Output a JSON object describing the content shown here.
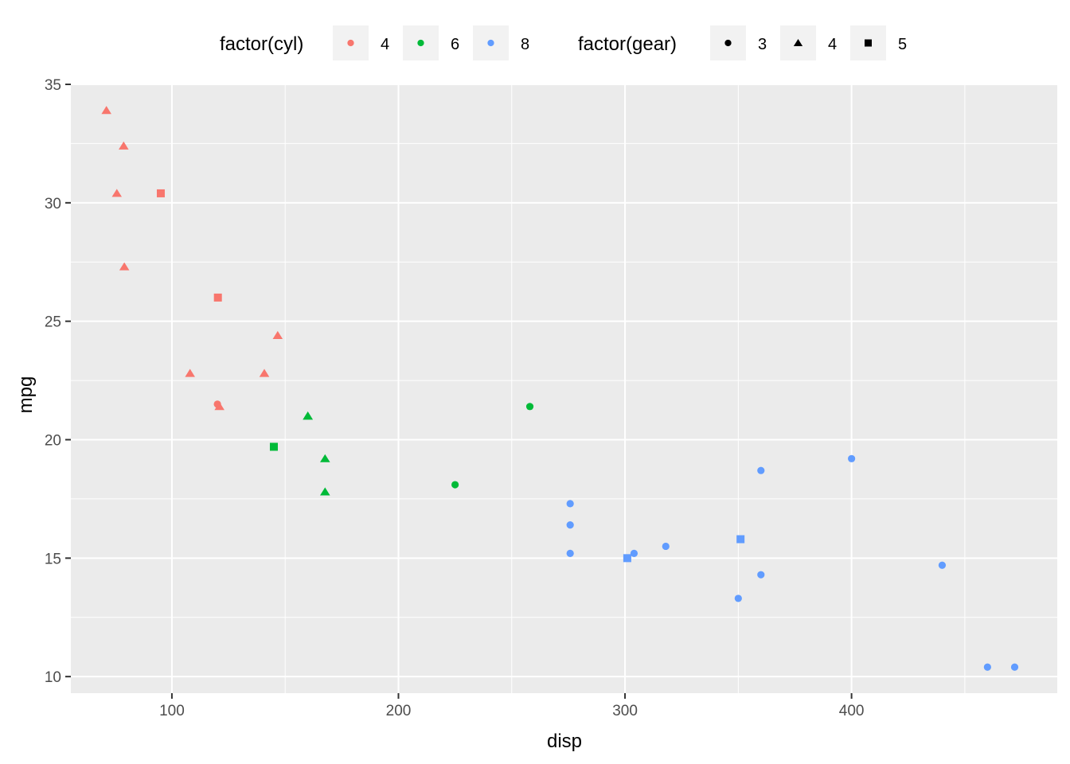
{
  "chart_data": {
    "type": "scatter",
    "title": "",
    "xlabel": "disp",
    "ylabel": "mpg",
    "xlim": [
      55.4,
      490.8
    ],
    "ylim": [
      9.3,
      35.0
    ],
    "x_ticks": [
      100,
      200,
      300,
      400
    ],
    "y_ticks": [
      10,
      15,
      20,
      25,
      30,
      35
    ],
    "grid": true,
    "legend_position": "top",
    "colors": {
      "4": "#F8766D",
      "6": "#00BA38",
      "8": "#619CFF"
    },
    "panel_background": "#EBEBEB",
    "legends": [
      {
        "title": "factor(cyl)",
        "aesthetic": "color",
        "entries": [
          {
            "label": "4",
            "key": "4"
          },
          {
            "label": "6",
            "key": "6"
          },
          {
            "label": "8",
            "key": "8"
          }
        ]
      },
      {
        "title": "factor(gear)",
        "aesthetic": "shape",
        "entries": [
          {
            "label": "3",
            "shape": "circle"
          },
          {
            "label": "4",
            "shape": "triangle"
          },
          {
            "label": "5",
            "shape": "square"
          }
        ]
      }
    ],
    "points": [
      {
        "disp": 71.1,
        "mpg": 33.9,
        "cyl": "4",
        "gear": "4"
      },
      {
        "disp": 78.7,
        "mpg": 32.4,
        "cyl": "4",
        "gear": "4"
      },
      {
        "disp": 75.7,
        "mpg": 30.4,
        "cyl": "4",
        "gear": "4"
      },
      {
        "disp": 79.0,
        "mpg": 27.3,
        "cyl": "4",
        "gear": "4"
      },
      {
        "disp": 95.1,
        "mpg": 30.4,
        "cyl": "4",
        "gear": "5"
      },
      {
        "disp": 120.3,
        "mpg": 26.0,
        "cyl": "4",
        "gear": "5"
      },
      {
        "disp": 146.7,
        "mpg": 24.4,
        "cyl": "4",
        "gear": "4"
      },
      {
        "disp": 108.0,
        "mpg": 22.8,
        "cyl": "4",
        "gear": "4"
      },
      {
        "disp": 140.8,
        "mpg": 22.8,
        "cyl": "4",
        "gear": "4"
      },
      {
        "disp": 120.1,
        "mpg": 21.5,
        "cyl": "4",
        "gear": "3"
      },
      {
        "disp": 121.0,
        "mpg": 21.4,
        "cyl": "4",
        "gear": "4"
      },
      {
        "disp": 160.0,
        "mpg": 21.0,
        "cyl": "6",
        "gear": "4"
      },
      {
        "disp": 160.0,
        "mpg": 21.0,
        "cyl": "6",
        "gear": "4"
      },
      {
        "disp": 145.0,
        "mpg": 19.7,
        "cyl": "6",
        "gear": "5"
      },
      {
        "disp": 167.6,
        "mpg": 19.2,
        "cyl": "6",
        "gear": "4"
      },
      {
        "disp": 167.6,
        "mpg": 17.8,
        "cyl": "6",
        "gear": "4"
      },
      {
        "disp": 258.0,
        "mpg": 21.4,
        "cyl": "6",
        "gear": "3"
      },
      {
        "disp": 225.0,
        "mpg": 18.1,
        "cyl": "6",
        "gear": "3"
      },
      {
        "disp": 275.8,
        "mpg": 17.3,
        "cyl": "8",
        "gear": "3"
      },
      {
        "disp": 275.8,
        "mpg": 16.4,
        "cyl": "8",
        "gear": "3"
      },
      {
        "disp": 275.8,
        "mpg": 15.2,
        "cyl": "8",
        "gear": "3"
      },
      {
        "disp": 301.0,
        "mpg": 15.0,
        "cyl": "8",
        "gear": "5"
      },
      {
        "disp": 304.0,
        "mpg": 15.2,
        "cyl": "8",
        "gear": "3"
      },
      {
        "disp": 318.0,
        "mpg": 15.5,
        "cyl": "8",
        "gear": "3"
      },
      {
        "disp": 351.0,
        "mpg": 15.8,
        "cyl": "8",
        "gear": "5"
      },
      {
        "disp": 350.0,
        "mpg": 13.3,
        "cyl": "8",
        "gear": "3"
      },
      {
        "disp": 360.0,
        "mpg": 18.7,
        "cyl": "8",
        "gear": "3"
      },
      {
        "disp": 360.0,
        "mpg": 14.3,
        "cyl": "8",
        "gear": "3"
      },
      {
        "disp": 400.0,
        "mpg": 19.2,
        "cyl": "8",
        "gear": "3"
      },
      {
        "disp": 440.0,
        "mpg": 14.7,
        "cyl": "8",
        "gear": "3"
      },
      {
        "disp": 460.0,
        "mpg": 10.4,
        "cyl": "8",
        "gear": "3"
      },
      {
        "disp": 472.0,
        "mpg": 10.4,
        "cyl": "8",
        "gear": "3"
      }
    ]
  }
}
